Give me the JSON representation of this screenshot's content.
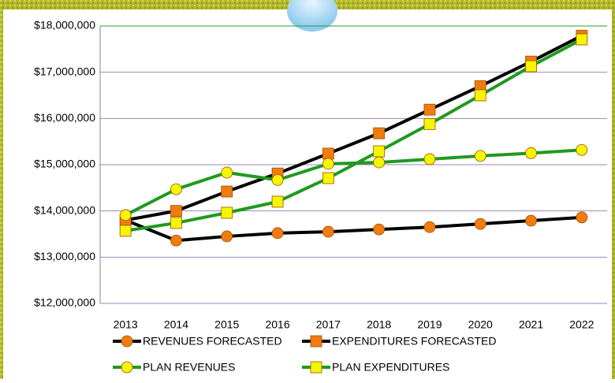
{
  "chart_data": {
    "type": "line",
    "categories": [
      "2013",
      "2014",
      "2015",
      "2016",
      "2017",
      "2018",
      "2019",
      "2020",
      "2021",
      "2022"
    ],
    "ylim": [
      12000000,
      18000000
    ],
    "yticks": [
      {
        "value": 12000000,
        "label": "$12,000,000"
      },
      {
        "value": 13000000,
        "label": "$13,000,000"
      },
      {
        "value": 14000000,
        "label": "$14,000,000"
      },
      {
        "value": 15000000,
        "label": "$15,000,000"
      },
      {
        "value": 16000000,
        "label": "$16,000,000"
      },
      {
        "value": 17000000,
        "label": "$17,000,000"
      },
      {
        "value": 18000000,
        "label": "$18,000,000"
      }
    ],
    "grid": true,
    "series": [
      {
        "name": "REVENUES FORECASTED",
        "color": "#000000",
        "marker": "circle",
        "marker_color": "#f07c10",
        "values": [
          13800000,
          13360000,
          13450000,
          13520000,
          13550000,
          13600000,
          13650000,
          13720000,
          13790000,
          13860000
        ]
      },
      {
        "name": "EXPENDITURES FORECASTED",
        "color": "#000000",
        "marker": "square",
        "marker_color": "#f07c10",
        "values": [
          13800000,
          14000000,
          14420000,
          14810000,
          15240000,
          15680000,
          16190000,
          16700000,
          17230000,
          17790000
        ]
      },
      {
        "name": "PLAN REVENUES",
        "color": "#1f9a1f",
        "marker": "circle",
        "marker_color": "#f5f500",
        "values": [
          13910000,
          14470000,
          14830000,
          14670000,
          15020000,
          15050000,
          15120000,
          15190000,
          15250000,
          15320000
        ]
      },
      {
        "name": "PLAN EXPENDITURES",
        "color": "#1f9a1f",
        "marker": "square",
        "marker_color": "#f5f500",
        "values": [
          13570000,
          13740000,
          13960000,
          14200000,
          14710000,
          15290000,
          15880000,
          16500000,
          17130000,
          17710000
        ]
      }
    ]
  }
}
